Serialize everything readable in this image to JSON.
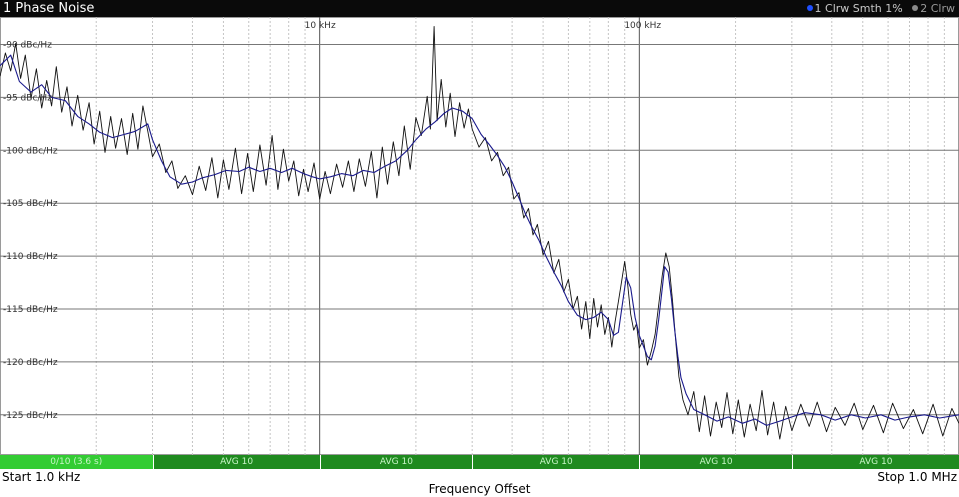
{
  "window": {
    "title": "1 Phase Noise",
    "legend": [
      {
        "label": "1 Clrw Smth 1%",
        "color": "#1f4fff"
      },
      {
        "label": "2 Clrw",
        "color": "#8a8a8a"
      }
    ]
  },
  "status_strip": {
    "segments": [
      {
        "label": "0/10 (3.6 s)",
        "color": "#33cc33",
        "from": 1000,
        "to": 3000
      },
      {
        "label": "AVG 10",
        "color": "#1f8a1f",
        "from": 3000,
        "to": 10000
      },
      {
        "label": "AVG 10",
        "color": "#1f8a1f",
        "from": 10000,
        "to": 30000
      },
      {
        "label": "AVG 10",
        "color": "#1f8a1f",
        "from": 30000,
        "to": 100000
      },
      {
        "label": "AVG 10",
        "color": "#1f8a1f",
        "from": 100000,
        "to": 300000
      },
      {
        "label": "AVG 10",
        "color": "#1f8a1f",
        "from": 300000,
        "to": 1000000
      }
    ]
  },
  "footer": {
    "start": "Start 1.0 kHz",
    "stop": "Stop 1.0 MHz",
    "center": "Frequency Offset"
  },
  "chart_data": {
    "type": "line",
    "xscale": "log",
    "xlim": [
      1000,
      1000000
    ],
    "ylim": [
      -128.8,
      -87.4
    ],
    "grid": true,
    "xticks": [
      {
        "value": 10000,
        "label": "10 kHz"
      },
      {
        "value": 100000,
        "label": "100 kHz"
      }
    ],
    "yticks": [
      {
        "value": -90,
        "label": "-90 dBc/Hz"
      },
      {
        "value": -95,
        "label": "-95 dBc/Hz"
      },
      {
        "value": -100,
        "label": "-100 dBc/Hz"
      },
      {
        "value": -105,
        "label": "-105 dBc/Hz"
      },
      {
        "value": -110,
        "label": "-110 dBc/Hz"
      },
      {
        "value": -115,
        "label": "-115 dBc/Hz"
      },
      {
        "value": -120,
        "label": "-120 dBc/Hz"
      },
      {
        "value": -125,
        "label": "-125 dBc/Hz"
      }
    ],
    "series": [
      {
        "name": "1 Clrw Smth 1%",
        "color": "#1a1a8c",
        "points": [
          [
            1000,
            -92.0
          ],
          [
            1080,
            -91.0
          ],
          [
            1150,
            -93.5
          ],
          [
            1250,
            -94.5
          ],
          [
            1350,
            -93.8
          ],
          [
            1450,
            -95.0
          ],
          [
            1600,
            -95.3
          ],
          [
            1750,
            -96.8
          ],
          [
            1900,
            -97.5
          ],
          [
            2050,
            -98.3
          ],
          [
            2250,
            -98.8
          ],
          [
            2450,
            -98.5
          ],
          [
            2650,
            -98.2
          ],
          [
            2900,
            -97.5
          ],
          [
            3000,
            -99.0
          ],
          [
            3200,
            -101.0
          ],
          [
            3400,
            -102.5
          ],
          [
            3700,
            -103.2
          ],
          [
            4000,
            -103.0
          ],
          [
            4300,
            -102.6
          ],
          [
            4700,
            -102.3
          ],
          [
            5100,
            -101.9
          ],
          [
            5600,
            -102.0
          ],
          [
            6000,
            -101.6
          ],
          [
            6500,
            -102.0
          ],
          [
            7000,
            -101.7
          ],
          [
            7600,
            -102.1
          ],
          [
            8200,
            -101.7
          ],
          [
            8900,
            -102.2
          ],
          [
            9500,
            -102.5
          ],
          [
            10000,
            -102.7
          ],
          [
            10800,
            -102.5
          ],
          [
            11700,
            -102.2
          ],
          [
            12700,
            -102.4
          ],
          [
            13700,
            -101.9
          ],
          [
            14800,
            -102.1
          ],
          [
            16000,
            -101.5
          ],
          [
            17300,
            -101.0
          ],
          [
            18800,
            -100.0
          ],
          [
            20000,
            -99.0
          ],
          [
            21500,
            -98.0
          ],
          [
            23000,
            -97.3
          ],
          [
            24500,
            -96.5
          ],
          [
            26000,
            -96.0
          ],
          [
            28000,
            -96.3
          ],
          [
            30000,
            -97.0
          ],
          [
            32000,
            -98.5
          ],
          [
            34000,
            -99.5
          ],
          [
            36000,
            -100.5
          ],
          [
            38000,
            -101.6
          ],
          [
            40000,
            -103.0
          ],
          [
            42000,
            -104.5
          ],
          [
            44000,
            -106.0
          ],
          [
            46000,
            -107.2
          ],
          [
            48500,
            -108.5
          ],
          [
            51000,
            -110.0
          ],
          [
            54000,
            -111.5
          ],
          [
            57000,
            -112.8
          ],
          [
            60000,
            -114.3
          ],
          [
            64000,
            -115.6
          ],
          [
            68000,
            -116.0
          ],
          [
            72000,
            -115.8
          ],
          [
            76000,
            -115.3
          ],
          [
            80000,
            -116.0
          ],
          [
            83000,
            -117.5
          ],
          [
            86000,
            -117.2
          ],
          [
            89000,
            -114.0
          ],
          [
            91000,
            -112.0
          ],
          [
            94000,
            -113.0
          ],
          [
            97000,
            -115.8
          ],
          [
            100000,
            -117.5
          ],
          [
            103000,
            -118.5
          ],
          [
            106000,
            -119.5
          ],
          [
            109000,
            -119.8
          ],
          [
            112000,
            -118.5
          ],
          [
            115000,
            -116.0
          ],
          [
            118000,
            -113.0
          ],
          [
            120000,
            -111.0
          ],
          [
            123000,
            -111.5
          ],
          [
            126000,
            -114.0
          ],
          [
            129000,
            -117.0
          ],
          [
            132000,
            -119.5
          ],
          [
            135000,
            -121.5
          ],
          [
            140000,
            -123.0
          ],
          [
            148000,
            -124.5
          ],
          [
            160000,
            -125.0
          ],
          [
            175000,
            -125.6
          ],
          [
            190000,
            -125.2
          ],
          [
            210000,
            -125.8
          ],
          [
            230000,
            -125.4
          ],
          [
            250000,
            -126.0
          ],
          [
            275000,
            -125.6
          ],
          [
            300000,
            -125.2
          ],
          [
            330000,
            -124.8
          ],
          [
            370000,
            -125.0
          ],
          [
            410000,
            -125.5
          ],
          [
            460000,
            -125.0
          ],
          [
            510000,
            -125.3
          ],
          [
            570000,
            -125.0
          ],
          [
            630000,
            -125.5
          ],
          [
            700000,
            -125.2
          ],
          [
            780000,
            -125.0
          ],
          [
            870000,
            -125.3
          ],
          [
            950000,
            -125.1
          ],
          [
            1000000,
            -125.0
          ]
        ]
      },
      {
        "name": "2 Clrw",
        "color": "#111111",
        "points": [
          [
            1000,
            -93.0
          ],
          [
            1040,
            -90.8
          ],
          [
            1080,
            -92.5
          ],
          [
            1120,
            -89.9
          ],
          [
            1160,
            -93.2
          ],
          [
            1200,
            -91.0
          ],
          [
            1250,
            -95.1
          ],
          [
            1300,
            -92.3
          ],
          [
            1350,
            -96.0
          ],
          [
            1400,
            -93.4
          ],
          [
            1450,
            -95.8
          ],
          [
            1500,
            -92.1
          ],
          [
            1560,
            -96.4
          ],
          [
            1620,
            -94.0
          ],
          [
            1680,
            -97.7
          ],
          [
            1750,
            -94.8
          ],
          [
            1820,
            -98.1
          ],
          [
            1900,
            -95.5
          ],
          [
            1970,
            -99.4
          ],
          [
            2050,
            -96.3
          ],
          [
            2130,
            -100.2
          ],
          [
            2220,
            -96.8
          ],
          [
            2300,
            -99.8
          ],
          [
            2400,
            -97.0
          ],
          [
            2500,
            -100.4
          ],
          [
            2600,
            -96.5
          ],
          [
            2700,
            -99.9
          ],
          [
            2800,
            -95.8
          ],
          [
            2900,
            -98.2
          ],
          [
            3000,
            -100.6
          ],
          [
            3150,
            -99.4
          ],
          [
            3300,
            -102.1
          ],
          [
            3450,
            -101.0
          ],
          [
            3600,
            -103.6
          ],
          [
            3800,
            -102.4
          ],
          [
            4000,
            -104.2
          ],
          [
            4200,
            -101.5
          ],
          [
            4400,
            -103.8
          ],
          [
            4600,
            -100.7
          ],
          [
            4800,
            -104.5
          ],
          [
            5000,
            -100.9
          ],
          [
            5200,
            -103.7
          ],
          [
            5450,
            -99.8
          ],
          [
            5700,
            -104.1
          ],
          [
            5950,
            -100.3
          ],
          [
            6200,
            -103.9
          ],
          [
            6500,
            -99.5
          ],
          [
            6800,
            -103.3
          ],
          [
            7100,
            -98.6
          ],
          [
            7400,
            -103.7
          ],
          [
            7700,
            -99.9
          ],
          [
            8000,
            -102.9
          ],
          [
            8300,
            -101.0
          ],
          [
            8600,
            -104.3
          ],
          [
            8900,
            -101.8
          ],
          [
            9200,
            -103.9
          ],
          [
            9600,
            -101.2
          ],
          [
            10000,
            -104.6
          ],
          [
            10400,
            -102.0
          ],
          [
            10800,
            -104.1
          ],
          [
            11300,
            -101.3
          ],
          [
            11800,
            -103.5
          ],
          [
            12300,
            -101.0
          ],
          [
            12800,
            -103.9
          ],
          [
            13300,
            -100.8
          ],
          [
            13900,
            -103.4
          ],
          [
            14500,
            -100.1
          ],
          [
            15100,
            -104.5
          ],
          [
            15700,
            -99.7
          ],
          [
            16300,
            -103.2
          ],
          [
            17000,
            -99.2
          ],
          [
            17700,
            -102.4
          ],
          [
            18400,
            -97.7
          ],
          [
            19200,
            -101.8
          ],
          [
            20000,
            -96.9
          ],
          [
            20800,
            -98.6
          ],
          [
            21700,
            -94.9
          ],
          [
            22200,
            -98.0
          ],
          [
            22800,
            -88.3
          ],
          [
            23300,
            -97.2
          ],
          [
            24000,
            -93.3
          ],
          [
            24800,
            -97.8
          ],
          [
            25600,
            -94.6
          ],
          [
            26500,
            -98.7
          ],
          [
            27400,
            -95.5
          ],
          [
            28300,
            -97.9
          ],
          [
            29200,
            -96.1
          ],
          [
            30000,
            -98.0
          ],
          [
            31500,
            -99.7
          ],
          [
            33000,
            -98.8
          ],
          [
            34500,
            -101.0
          ],
          [
            36000,
            -100.2
          ],
          [
            37500,
            -102.4
          ],
          [
            39000,
            -101.6
          ],
          [
            40500,
            -104.6
          ],
          [
            42000,
            -104.0
          ],
          [
            43500,
            -106.4
          ],
          [
            45000,
            -105.5
          ],
          [
            46500,
            -108.0
          ],
          [
            48000,
            -107.0
          ],
          [
            50000,
            -109.9
          ],
          [
            52000,
            -108.6
          ],
          [
            54000,
            -111.6
          ],
          [
            56000,
            -110.3
          ],
          [
            58000,
            -113.4
          ],
          [
            60000,
            -112.2
          ],
          [
            62000,
            -115.0
          ],
          [
            64000,
            -113.8
          ],
          [
            66000,
            -116.9
          ],
          [
            68000,
            -114.3
          ],
          [
            70000,
            -117.8
          ],
          [
            72000,
            -114.0
          ],
          [
            74000,
            -116.7
          ],
          [
            76000,
            -114.6
          ],
          [
            78000,
            -117.4
          ],
          [
            80000,
            -115.8
          ],
          [
            82000,
            -118.6
          ],
          [
            84000,
            -116.2
          ],
          [
            86000,
            -114.3
          ],
          [
            88000,
            -112.4
          ],
          [
            90000,
            -110.5
          ],
          [
            92000,
            -112.8
          ],
          [
            94000,
            -115.5
          ],
          [
            96000,
            -117.0
          ],
          [
            98000,
            -116.4
          ],
          [
            100000,
            -118.7
          ],
          [
            103000,
            -117.9
          ],
          [
            106000,
            -120.3
          ],
          [
            109000,
            -119.0
          ],
          [
            112000,
            -117.4
          ],
          [
            115000,
            -114.6
          ],
          [
            118000,
            -111.8
          ],
          [
            121000,
            -109.7
          ],
          [
            124000,
            -111.0
          ],
          [
            127000,
            -114.2
          ],
          [
            130000,
            -118.1
          ],
          [
            133000,
            -121.4
          ],
          [
            137000,
            -123.6
          ],
          [
            142000,
            -125.0
          ],
          [
            148000,
            -122.8
          ],
          [
            154000,
            -126.6
          ],
          [
            160000,
            -123.2
          ],
          [
            167000,
            -127.0
          ],
          [
            174000,
            -123.8
          ],
          [
            181000,
            -126.2
          ],
          [
            188000,
            -122.9
          ],
          [
            196000,
            -126.8
          ],
          [
            204000,
            -123.6
          ],
          [
            213000,
            -127.1
          ],
          [
            222000,
            -124.0
          ],
          [
            232000,
            -126.5
          ],
          [
            242000,
            -122.7
          ],
          [
            252000,
            -126.9
          ],
          [
            263000,
            -123.8
          ],
          [
            275000,
            -127.3
          ],
          [
            287000,
            -124.2
          ],
          [
            300000,
            -126.5
          ],
          [
            320000,
            -124.0
          ],
          [
            340000,
            -126.1
          ],
          [
            360000,
            -123.8
          ],
          [
            385000,
            -126.6
          ],
          [
            410000,
            -124.3
          ],
          [
            440000,
            -126.0
          ],
          [
            470000,
            -123.9
          ],
          [
            500000,
            -126.4
          ],
          [
            540000,
            -124.1
          ],
          [
            580000,
            -126.7
          ],
          [
            620000,
            -123.9
          ],
          [
            670000,
            -126.3
          ],
          [
            720000,
            -124.5
          ],
          [
            770000,
            -126.8
          ],
          [
            830000,
            -124.0
          ],
          [
            890000,
            -127.0
          ],
          [
            950000,
            -124.4
          ],
          [
            1000000,
            -125.8
          ]
        ]
      }
    ]
  }
}
